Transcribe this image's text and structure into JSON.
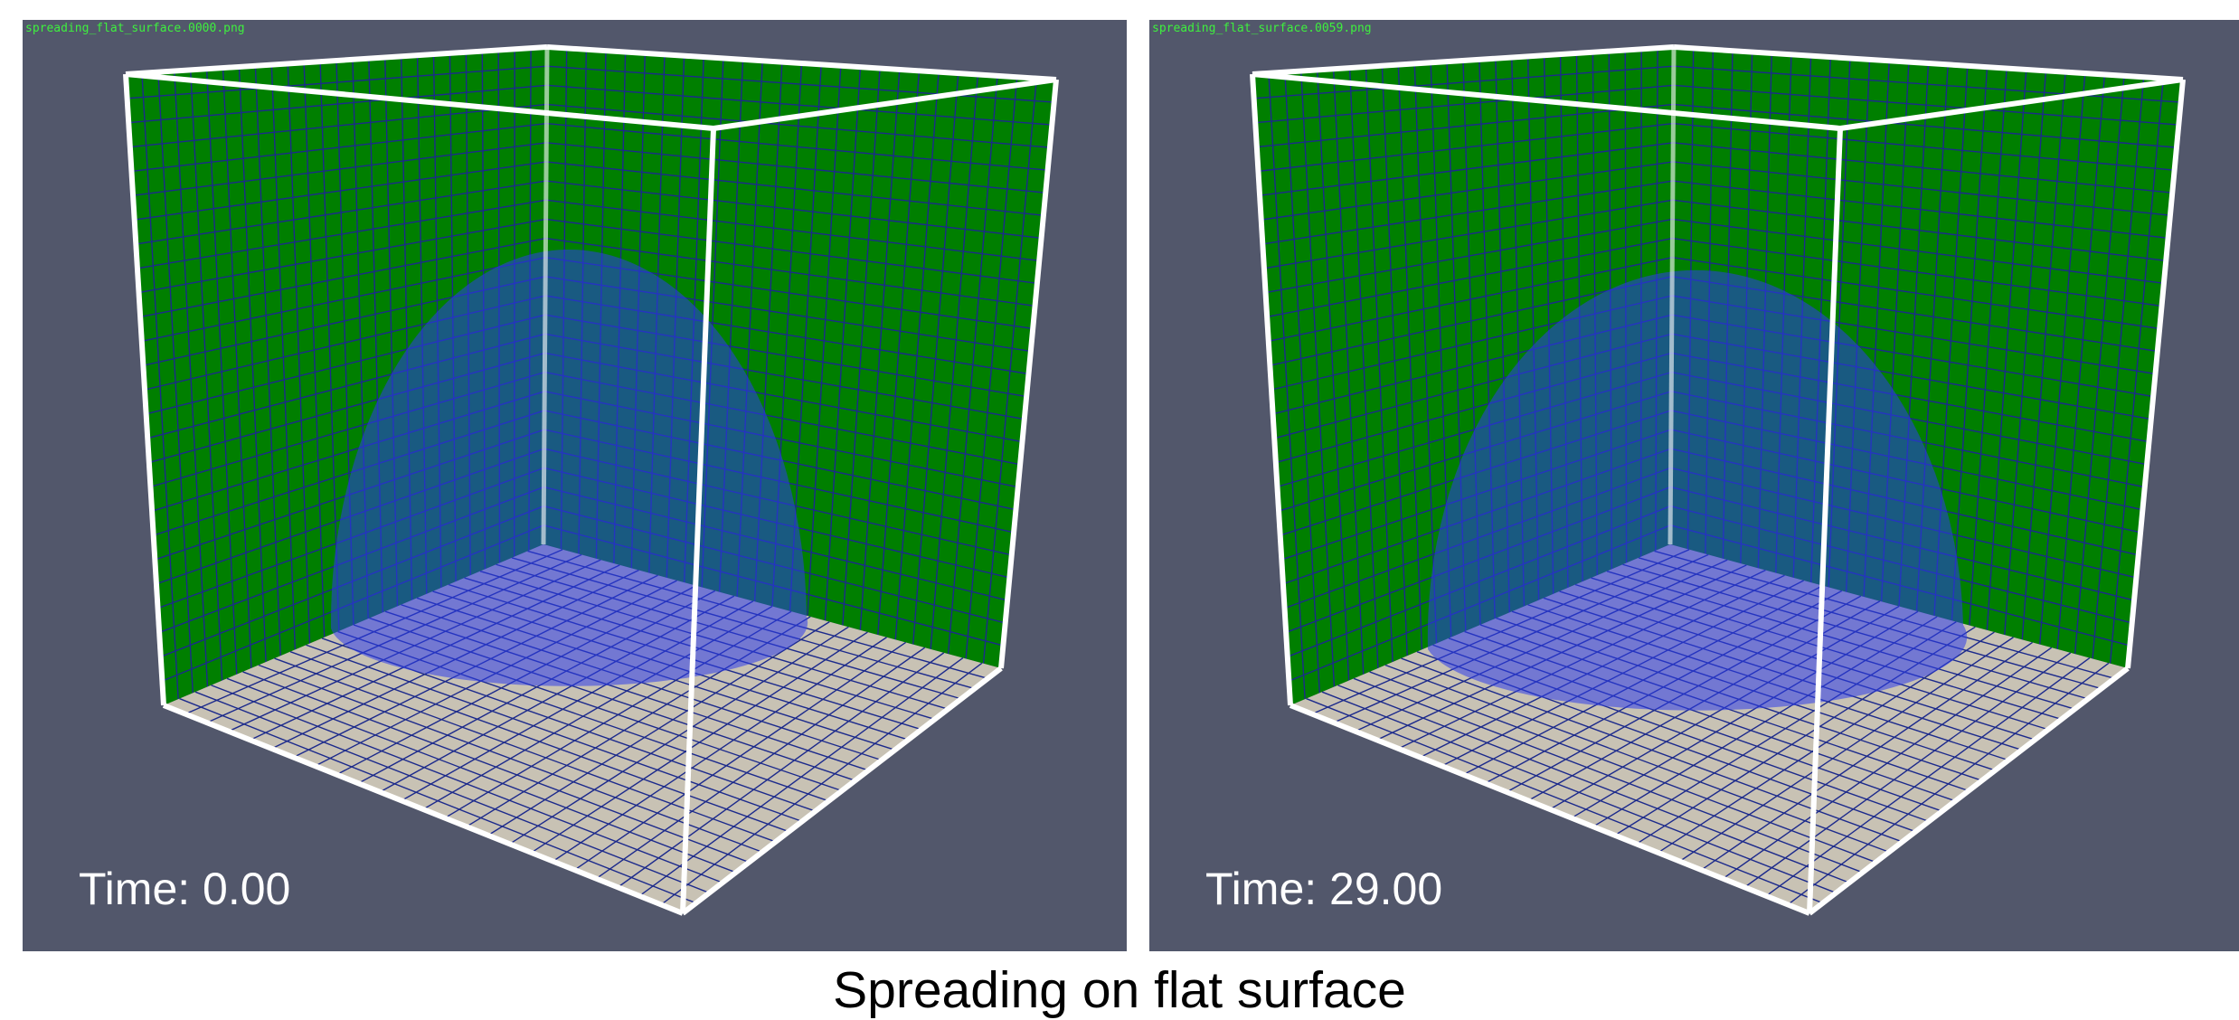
{
  "panels": [
    {
      "filename": "spreading_flat_surface.0000.png",
      "time_label": "Time: 0.00"
    },
    {
      "filename": "spreading_flat_surface.0059.png",
      "time_label": "Time: 29.00"
    }
  ],
  "caption": "Spreading on flat surface"
}
